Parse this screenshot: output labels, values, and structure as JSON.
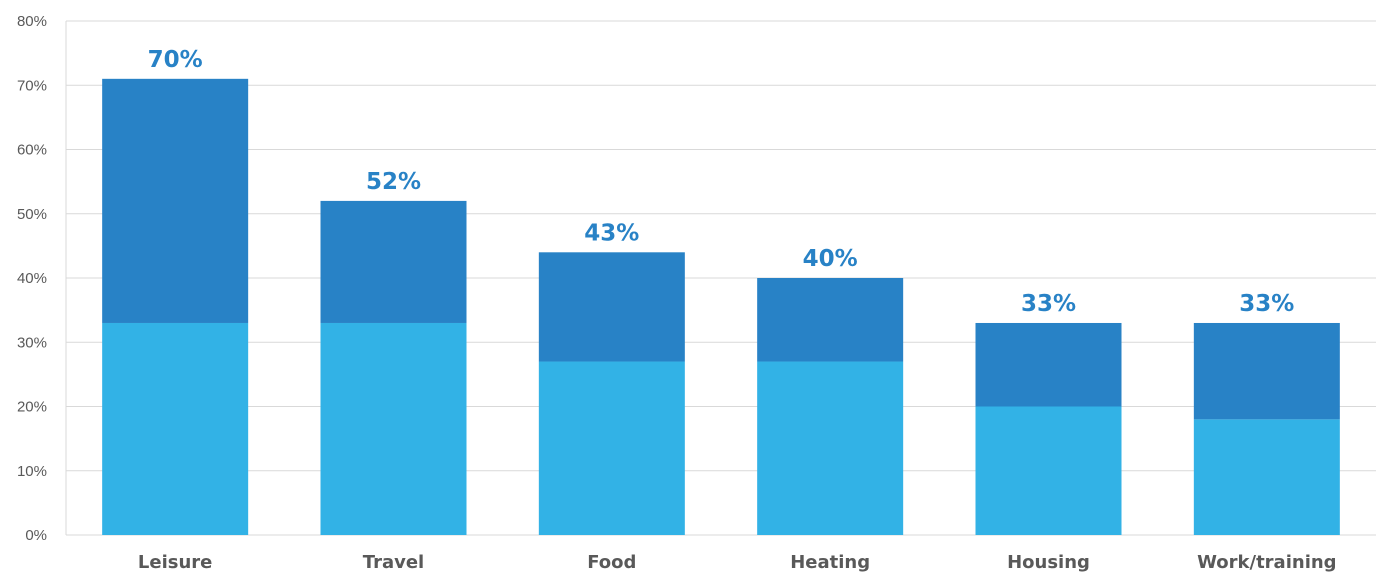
{
  "chart_data": {
    "type": "bar",
    "stacked": true,
    "categories": [
      "Leisure",
      "Travel",
      "Food",
      "Heating",
      "Housing",
      "Work/training"
    ],
    "series": [
      {
        "values": [
          33,
          33,
          27,
          27,
          20,
          18
        ],
        "color": "#32B2E6"
      },
      {
        "values": [
          38,
          19,
          17,
          13,
          13,
          15
        ],
        "color": "#2882C6"
      }
    ],
    "data_labels": [
      "70%",
      "52%",
      "43%",
      "40%",
      "33%",
      "33%"
    ],
    "data_label_color": "#2882C6",
    "yticks": [
      "0%",
      "10%",
      "20%",
      "30%",
      "40%",
      "50%",
      "60%",
      "70%",
      "80%"
    ],
    "ylim": [
      0,
      80
    ],
    "grid": true,
    "legend": "none"
  }
}
